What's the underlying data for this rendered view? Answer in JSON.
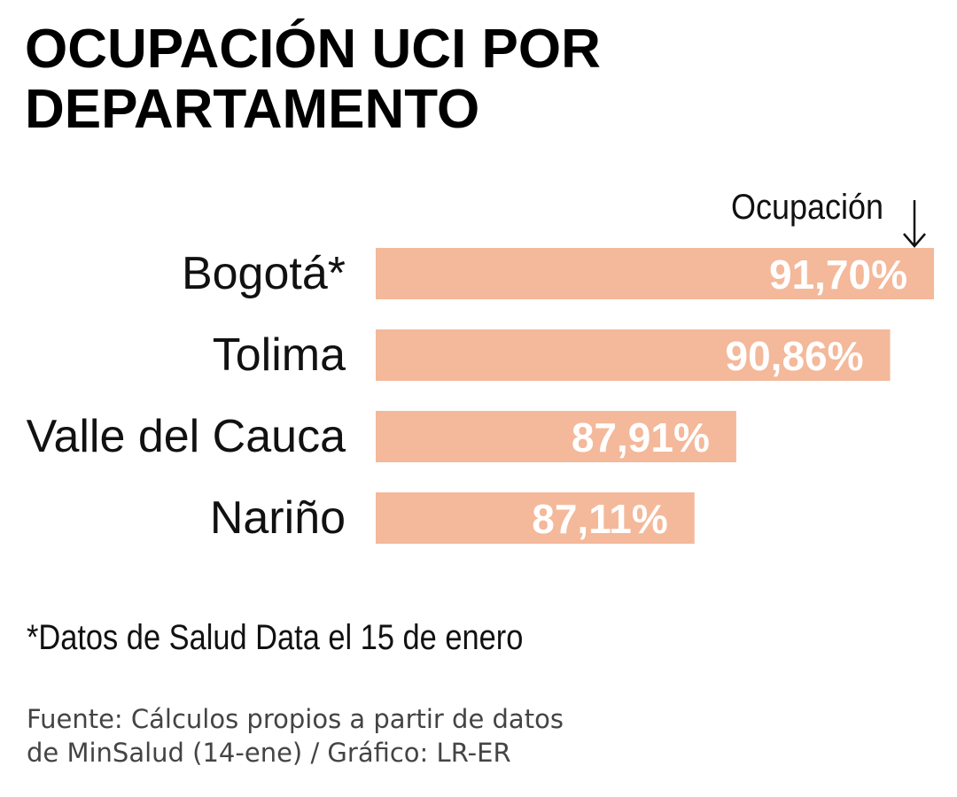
{
  "header": {
    "title_line1": "OCUPACIÓN UCI POR",
    "title_line2": "DEPARTAMENTO"
  },
  "chart_data": {
    "type": "bar",
    "orientation": "horizontal",
    "column_label": "Ocupación",
    "categories": [
      "Bogotá*",
      "Tolima",
      "Valle del Cauca",
      "Nariño"
    ],
    "values": [
      91.7,
      90.86,
      87.91,
      87.11
    ],
    "value_labels": [
      "91,70%",
      "90,86%",
      "87,91%",
      "87,11%"
    ],
    "bar_color": "#f4b89a",
    "label_color": "#ffffff"
  },
  "footnote": "*Datos de Salud Data el 15 de enero",
  "source": {
    "line1": "Fuente: Cálculos propios a partir de datos",
    "line2": "de MinSalud (14-ene) / Gráfico: LR-ER"
  }
}
